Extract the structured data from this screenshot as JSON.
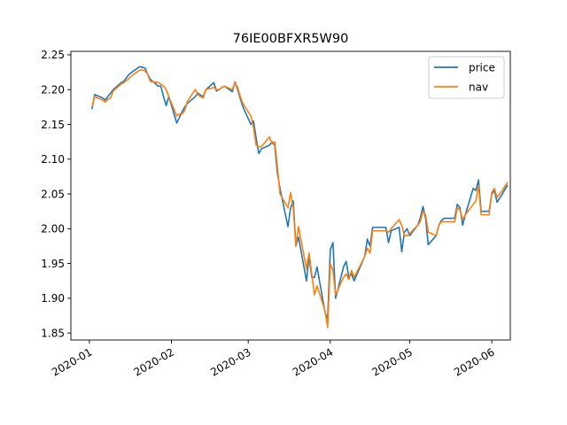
{
  "chart_data": {
    "type": "line",
    "title": "76IE00BFXR5W90",
    "xlabel": "",
    "ylabel": "",
    "x_ticks": [
      "2020-01",
      "2020-02",
      "2020-03",
      "2020-04",
      "2020-05",
      "2020-06"
    ],
    "y_ticks": [
      "1.85",
      "1.90",
      "1.95",
      "2.00",
      "2.05",
      "2.10",
      "2.15",
      "2.20",
      "2.25"
    ],
    "xlim": [
      "2019-12-25",
      "2020-06-08"
    ],
    "ylim": [
      1.84,
      2.255
    ],
    "grid": false,
    "legend_position": "top-right",
    "colors": {
      "price": "#1f77b4",
      "nav": "#ff7f0e"
    },
    "series": [
      {
        "name": "price",
        "points": [
          [
            "2020-01-02",
            2.172
          ],
          [
            "2020-01-03",
            2.193
          ],
          [
            "2020-01-06",
            2.188
          ],
          [
            "2020-01-07",
            2.185
          ],
          [
            "2020-01-08",
            2.19
          ],
          [
            "2020-01-09",
            2.195
          ],
          [
            "2020-01-10",
            2.2
          ],
          [
            "2020-01-13",
            2.21
          ],
          [
            "2020-01-14",
            2.212
          ],
          [
            "2020-01-15",
            2.217
          ],
          [
            "2020-01-16",
            2.222
          ],
          [
            "2020-01-17",
            2.225
          ],
          [
            "2020-01-20",
            2.233
          ],
          [
            "2020-01-21",
            2.232
          ],
          [
            "2020-01-22",
            2.231
          ],
          [
            "2020-01-23",
            2.222
          ],
          [
            "2020-01-24",
            2.215
          ],
          [
            "2020-01-27",
            2.205
          ],
          [
            "2020-01-28",
            2.205
          ],
          [
            "2020-01-29",
            2.19
          ],
          [
            "2020-01-30",
            2.177
          ],
          [
            "2020-01-31",
            2.19
          ],
          [
            "2020-02-03",
            2.152
          ],
          [
            "2020-02-04",
            2.16
          ],
          [
            "2020-02-05",
            2.168
          ],
          [
            "2020-02-06",
            2.175
          ],
          [
            "2020-02-07",
            2.18
          ],
          [
            "2020-02-10",
            2.19
          ],
          [
            "2020-02-11",
            2.195
          ],
          [
            "2020-02-12",
            2.192
          ],
          [
            "2020-02-13",
            2.19
          ],
          [
            "2020-02-14",
            2.2
          ],
          [
            "2020-02-17",
            2.21
          ],
          [
            "2020-02-18",
            2.198
          ],
          [
            "2020-02-19",
            2.2
          ],
          [
            "2020-02-20",
            2.203
          ],
          [
            "2020-02-21",
            2.205
          ],
          [
            "2020-02-24",
            2.197
          ],
          [
            "2020-02-25",
            2.211
          ],
          [
            "2020-02-26",
            2.2
          ],
          [
            "2020-02-27",
            2.187
          ],
          [
            "2020-02-28",
            2.175
          ],
          [
            "2020-03-02",
            2.15
          ],
          [
            "2020-03-03",
            2.155
          ],
          [
            "2020-03-04",
            2.13
          ],
          [
            "2020-03-05",
            2.108
          ],
          [
            "2020-03-06",
            2.115
          ],
          [
            "2020-03-09",
            2.12
          ],
          [
            "2020-03-10",
            2.125
          ],
          [
            "2020-03-11",
            2.12
          ],
          [
            "2020-03-12",
            2.08
          ],
          [
            "2020-03-13",
            2.058
          ],
          [
            "2020-03-16",
            2.003
          ],
          [
            "2020-03-17",
            2.03
          ],
          [
            "2020-03-18",
            2.04
          ],
          [
            "2020-03-19",
            1.975
          ],
          [
            "2020-03-20",
            1.988
          ],
          [
            "2020-03-23",
            1.925
          ],
          [
            "2020-03-24",
            1.96
          ],
          [
            "2020-03-25",
            1.93
          ],
          [
            "2020-03-26",
            1.93
          ],
          [
            "2020-03-27",
            1.945
          ],
          [
            "2020-03-30",
            1.88
          ],
          [
            "2020-03-31",
            1.87
          ],
          [
            "2020-04-01",
            1.97
          ],
          [
            "2020-04-02",
            1.98
          ],
          [
            "2020-04-03",
            1.9
          ],
          [
            "2020-04-06",
            1.945
          ],
          [
            "2020-04-07",
            1.953
          ],
          [
            "2020-04-08",
            1.93
          ],
          [
            "2020-04-09",
            1.935
          ],
          [
            "2020-04-10",
            1.925
          ],
          [
            "2020-04-14",
            1.96
          ],
          [
            "2020-04-15",
            1.985
          ],
          [
            "2020-04-16",
            1.975
          ],
          [
            "2020-04-17",
            2.002
          ],
          [
            "2020-04-20",
            2.002
          ],
          [
            "2020-04-21",
            2.002
          ],
          [
            "2020-04-22",
            2.002
          ],
          [
            "2020-04-23",
            1.98
          ],
          [
            "2020-04-24",
            1.997
          ],
          [
            "2020-04-27",
            2.002
          ],
          [
            "2020-04-28",
            1.967
          ],
          [
            "2020-04-29",
            1.995
          ],
          [
            "2020-04-30",
            2.0
          ],
          [
            "2020-05-01",
            1.99
          ],
          [
            "2020-05-04",
            2.005
          ],
          [
            "2020-05-05",
            2.015
          ],
          [
            "2020-05-06",
            2.032
          ],
          [
            "2020-05-07",
            2.015
          ],
          [
            "2020-05-08",
            1.977
          ],
          [
            "2020-05-11",
            1.99
          ],
          [
            "2020-05-12",
            2.005
          ],
          [
            "2020-05-13",
            2.012
          ],
          [
            "2020-05-14",
            2.015
          ],
          [
            "2020-05-15",
            2.015
          ],
          [
            "2020-05-18",
            2.015
          ],
          [
            "2020-05-19",
            2.035
          ],
          [
            "2020-05-20",
            2.03
          ],
          [
            "2020-05-21",
            2.005
          ],
          [
            "2020-05-22",
            2.02
          ],
          [
            "2020-05-25",
            2.058
          ],
          [
            "2020-05-26",
            2.055
          ],
          [
            "2020-05-27",
            2.07
          ],
          [
            "2020-05-28",
            2.025
          ],
          [
            "2020-05-29",
            2.025
          ],
          [
            "2020-05-31",
            2.025
          ],
          [
            "2020-06-01",
            2.05
          ],
          [
            "2020-06-02",
            2.055
          ],
          [
            "2020-06-03",
            2.038
          ],
          [
            "2020-06-05",
            2.05
          ],
          [
            "2020-06-07",
            2.063
          ]
        ]
      },
      {
        "name": "nav",
        "points": [
          [
            "2020-01-02",
            2.175
          ],
          [
            "2020-01-03",
            2.19
          ],
          [
            "2020-01-06",
            2.185
          ],
          [
            "2020-01-07",
            2.182
          ],
          [
            "2020-01-08",
            2.186
          ],
          [
            "2020-01-09",
            2.188
          ],
          [
            "2020-01-10",
            2.198
          ],
          [
            "2020-01-13",
            2.208
          ],
          [
            "2020-01-14",
            2.21
          ],
          [
            "2020-01-15",
            2.213
          ],
          [
            "2020-01-16",
            2.216
          ],
          [
            "2020-01-17",
            2.22
          ],
          [
            "2020-01-20",
            2.228
          ],
          [
            "2020-01-21",
            2.228
          ],
          [
            "2020-01-22",
            2.227
          ],
          [
            "2020-01-23",
            2.222
          ],
          [
            "2020-01-24",
            2.212
          ],
          [
            "2020-01-27",
            2.21
          ],
          [
            "2020-01-28",
            2.208
          ],
          [
            "2020-01-29",
            2.205
          ],
          [
            "2020-01-30",
            2.2
          ],
          [
            "2020-01-31",
            2.19
          ],
          [
            "2020-02-03",
            2.162
          ],
          [
            "2020-02-04",
            2.165
          ],
          [
            "2020-02-05",
            2.165
          ],
          [
            "2020-02-06",
            2.17
          ],
          [
            "2020-02-07",
            2.183
          ],
          [
            "2020-02-10",
            2.2
          ],
          [
            "2020-02-11",
            2.193
          ],
          [
            "2020-02-12",
            2.19
          ],
          [
            "2020-02-13",
            2.188
          ],
          [
            "2020-02-14",
            2.2
          ],
          [
            "2020-02-17",
            2.203
          ],
          [
            "2020-02-18",
            2.2
          ],
          [
            "2020-02-19",
            2.2
          ],
          [
            "2020-02-20",
            2.203
          ],
          [
            "2020-02-21",
            2.205
          ],
          [
            "2020-02-24",
            2.2
          ],
          [
            "2020-02-25",
            2.21
          ],
          [
            "2020-02-26",
            2.203
          ],
          [
            "2020-02-27",
            2.19
          ],
          [
            "2020-02-28",
            2.18
          ],
          [
            "2020-03-02",
            2.162
          ],
          [
            "2020-03-03",
            2.145
          ],
          [
            "2020-03-04",
            2.12
          ],
          [
            "2020-03-05",
            2.118
          ],
          [
            "2020-03-06",
            2.118
          ],
          [
            "2020-03-09",
            2.132
          ],
          [
            "2020-03-10",
            2.122
          ],
          [
            "2020-03-11",
            2.125
          ],
          [
            "2020-03-12",
            2.09
          ],
          [
            "2020-03-13",
            2.05
          ],
          [
            "2020-03-16",
            2.03
          ],
          [
            "2020-03-17",
            2.052
          ],
          [
            "2020-03-18",
            2.03
          ],
          [
            "2020-03-19",
            1.975
          ],
          [
            "2020-03-20",
            2.003
          ],
          [
            "2020-03-23",
            1.942
          ],
          [
            "2020-03-24",
            1.965
          ],
          [
            "2020-03-25",
            1.935
          ],
          [
            "2020-03-26",
            1.905
          ],
          [
            "2020-03-27",
            1.918
          ],
          [
            "2020-03-30",
            1.882
          ],
          [
            "2020-03-31",
            1.858
          ],
          [
            "2020-04-01",
            1.95
          ],
          [
            "2020-04-02",
            1.94
          ],
          [
            "2020-04-03",
            1.905
          ],
          [
            "2020-04-06",
            1.93
          ],
          [
            "2020-04-07",
            1.935
          ],
          [
            "2020-04-08",
            1.927
          ],
          [
            "2020-04-09",
            1.94
          ],
          [
            "2020-04-10",
            1.93
          ],
          [
            "2020-04-14",
            1.96
          ],
          [
            "2020-04-15",
            1.972
          ],
          [
            "2020-04-16",
            1.965
          ],
          [
            "2020-04-17",
            1.997
          ],
          [
            "2020-04-20",
            1.997
          ],
          [
            "2020-04-21",
            1.997
          ],
          [
            "2020-04-22",
            1.997
          ],
          [
            "2020-04-23",
            1.995
          ],
          [
            "2020-04-24",
            2.0
          ],
          [
            "2020-04-27",
            2.013
          ],
          [
            "2020-04-28",
            2.005
          ],
          [
            "2020-04-29",
            1.99
          ],
          [
            "2020-04-30",
            1.99
          ],
          [
            "2020-05-01",
            1.993
          ],
          [
            "2020-05-04",
            2.005
          ],
          [
            "2020-05-05",
            2.01
          ],
          [
            "2020-05-06",
            2.025
          ],
          [
            "2020-05-07",
            2.02
          ],
          [
            "2020-05-08",
            1.995
          ],
          [
            "2020-05-11",
            1.99
          ],
          [
            "2020-05-12",
            2.005
          ],
          [
            "2020-05-13",
            2.01
          ],
          [
            "2020-05-14",
            2.01
          ],
          [
            "2020-05-15",
            2.01
          ],
          [
            "2020-05-18",
            2.01
          ],
          [
            "2020-05-19",
            2.03
          ],
          [
            "2020-05-20",
            2.027
          ],
          [
            "2020-05-21",
            2.013
          ],
          [
            "2020-05-22",
            2.02
          ],
          [
            "2020-05-25",
            2.035
          ],
          [
            "2020-05-26",
            2.04
          ],
          [
            "2020-05-27",
            2.062
          ],
          [
            "2020-05-28",
            2.02
          ],
          [
            "2020-05-29",
            2.02
          ],
          [
            "2020-05-31",
            2.02
          ],
          [
            "2020-06-01",
            2.052
          ],
          [
            "2020-06-02",
            2.058
          ],
          [
            "2020-06-03",
            2.045
          ],
          [
            "2020-06-05",
            2.055
          ],
          [
            "2020-06-07",
            2.067
          ]
        ]
      }
    ]
  }
}
